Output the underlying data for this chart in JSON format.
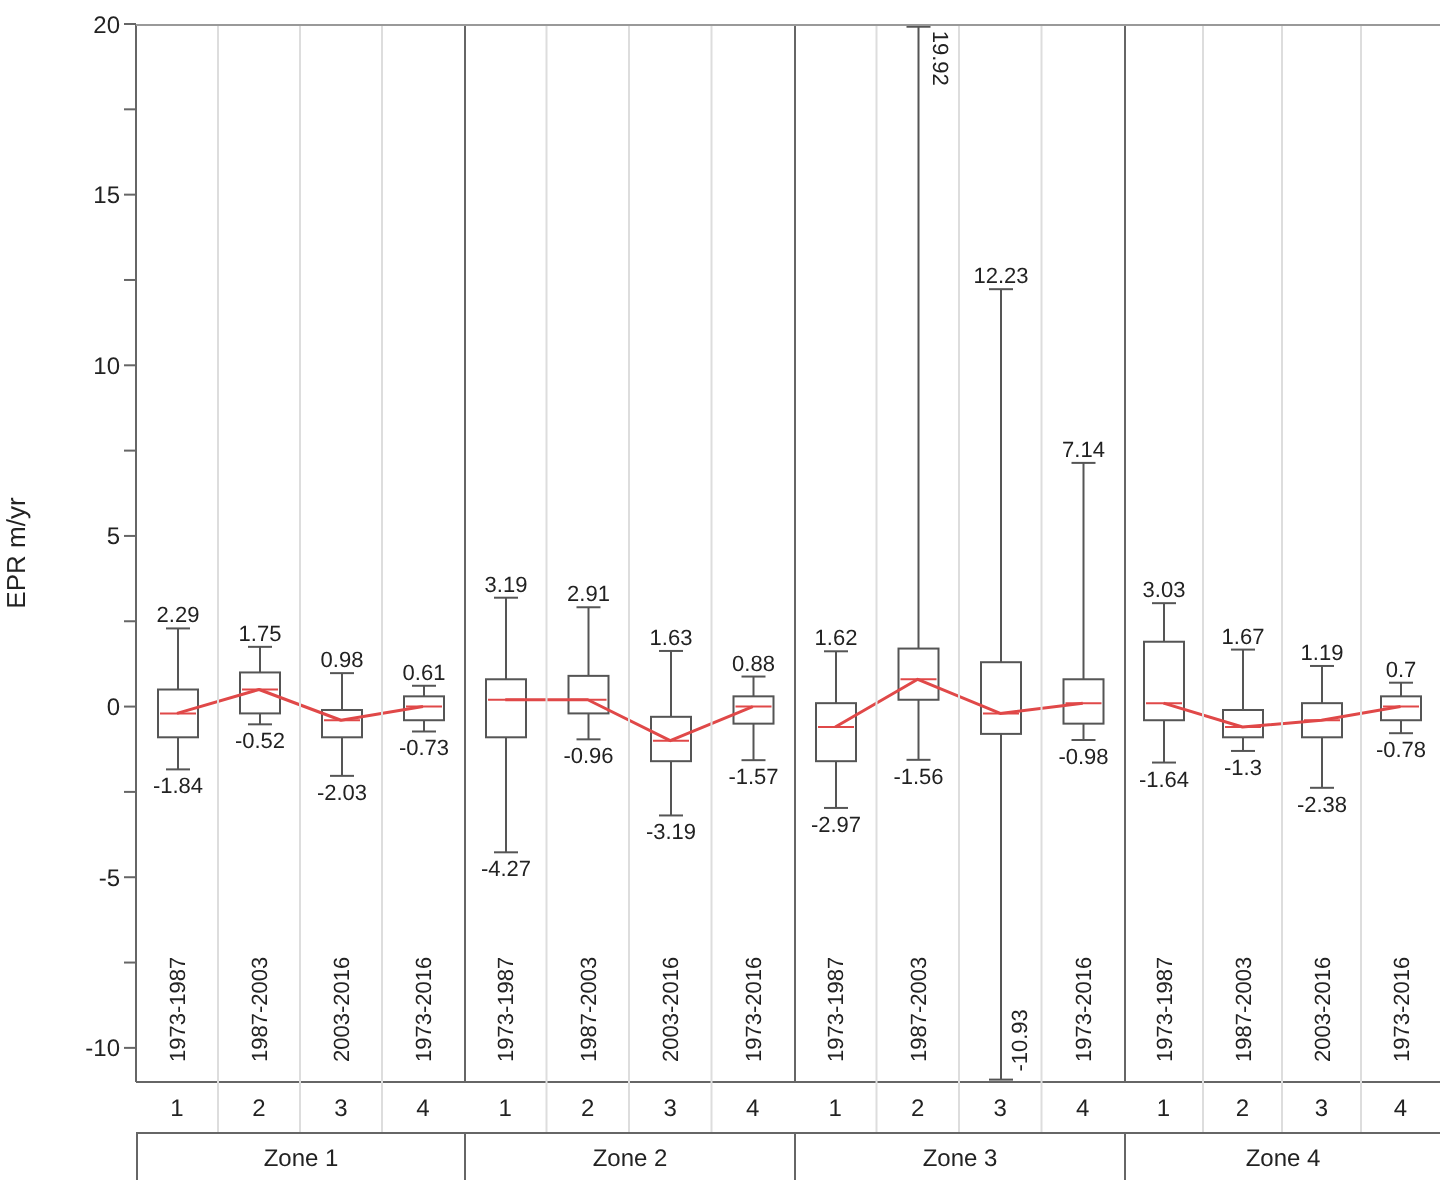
{
  "chart_data": [
    {
      "type": "box",
      "ylabel": "EPR m/yr",
      "xlabel": "Zone 1",
      "categories": [
        "1973-1987",
        "1987-2003",
        "2003-2016",
        "1973-2016"
      ],
      "color": "#555555",
      "ylim": [
        -11,
        20
      ],
      "yticks": [
        {
          "value": -10,
          "label": "-10"
        },
        {
          "value": -7.5,
          "label": null
        },
        {
          "value": -5,
          "label": "-5"
        },
        {
          "value": -2.5,
          "label": null
        },
        0,
        {
          "value": 2.5,
          "label": null
        },
        5,
        {
          "value": 7.5,
          "label": null
        },
        10,
        {
          "value": 12.5,
          "label": null
        },
        15,
        {
          "value": 17.5,
          "label": null
        },
        20
      ],
      "boxes": [
        {
          "low": -1.84,
          "q1": -0.9,
          "median": -0.2,
          "q3": 0.5,
          "high": 2.29
        },
        {
          "low": -0.52,
          "q1": -0.2,
          "median": 0.5,
          "q3": 1.0,
          "high": 1.75
        },
        {
          "low": -2.03,
          "q1": -0.9,
          "median": -0.4,
          "q3": -0.1,
          "high": 0.98
        },
        {
          "low": -0.73,
          "q1": -0.4,
          "median": 0.0,
          "q3": 0.3,
          "high": 0.61
        }
      ],
      "series": [
        {
          "type": "line",
          "color": "#e04848",
          "values": [
            -0.2,
            0.5,
            -0.4,
            0.0
          ]
        }
      ],
      "annotations": [
        "1",
        "2",
        "3",
        "4",
        {
          "text": "2.29",
          "x": "1973-1987",
          "y": 2.29
        },
        {
          "text": "-1.84",
          "x": "1973-1987",
          "y": -1.84
        },
        {
          "text": "1.75",
          "x": "1987-2003",
          "y": 1.75
        },
        {
          "text": "-0.52",
          "x": "1987-2003",
          "y": -0.52
        },
        {
          "text": "0.98",
          "x": "2003-2016",
          "y": 0.98
        },
        {
          "text": "-2.03",
          "x": "2003-2016",
          "y": -2.03
        },
        {
          "text": "0.61",
          "x": "1973-2016",
          "y": 0.61
        },
        {
          "text": "-0.73",
          "x": "1973-2016",
          "y": -0.73
        }
      ]
    },
    {
      "type": "box",
      "xlabel": "Zone 2",
      "categories": [
        "1973-1987",
        "1987-2003",
        "2003-2016",
        "1973-2016"
      ],
      "color": "#555555",
      "ylim": [
        -11,
        20
      ],
      "tick_labels": "x",
      "boxes": [
        {
          "low": -4.27,
          "q1": -0.9,
          "median": 0.2,
          "q3": 0.8,
          "high": 3.19
        },
        {
          "low": -0.96,
          "q1": -0.2,
          "median": 0.2,
          "q3": 0.9,
          "high": 2.91
        },
        {
          "low": -3.19,
          "q1": -1.6,
          "median": -1.0,
          "q3": -0.3,
          "high": 1.63
        },
        {
          "low": -1.57,
          "q1": -0.5,
          "median": 0.0,
          "q3": 0.3,
          "high": 0.88
        }
      ],
      "series": [
        {
          "type": "line",
          "color": "#e04848",
          "values": [
            0.2,
            0.2,
            -1.0,
            0.0
          ]
        }
      ],
      "annotations": [
        "1",
        "2",
        "3",
        "4",
        {
          "text": "3.19",
          "x": "1973-1987",
          "y": 3.19
        },
        {
          "text": "-4.27",
          "x": "1973-1987",
          "y": -4.27
        },
        {
          "text": "2.91",
          "x": "1987-2003",
          "y": 2.91
        },
        {
          "text": "-0.96",
          "x": "1987-2003",
          "y": -0.96
        },
        {
          "text": "1.63",
          "x": "2003-2016",
          "y": 1.63
        },
        {
          "text": "-3.19",
          "x": "2003-2016",
          "y": -3.19
        },
        {
          "text": "0.88",
          "x": "1973-2016",
          "y": 0.88
        },
        {
          "text": "-1.57",
          "x": "1973-2016",
          "y": -1.57
        }
      ]
    },
    {
      "type": "box",
      "xlabel": "Zone 3",
      "categories": [
        "1973-1987",
        "1987-2003",
        null,
        "1973-2016"
      ],
      "color": "#555555",
      "ylim": [
        -11,
        20
      ],
      "tick_labels": "x",
      "boxes": [
        {
          "low": -2.97,
          "q1": -1.6,
          "median": -0.6,
          "q3": 0.1,
          "high": 1.62
        },
        {
          "low": -1.56,
          "q1": 0.2,
          "median": 0.8,
          "q3": 1.7,
          "high": 19.92
        },
        {
          "low": -10.93,
          "q1": -0.8,
          "median": -0.2,
          "q3": 1.3,
          "high": 12.23
        },
        {
          "low": -0.98,
          "q1": -0.5,
          "median": 0.1,
          "q3": 0.8,
          "high": 7.14
        }
      ],
      "series": [
        {
          "type": "line",
          "color": "#e04848",
          "values": [
            -0.6,
            0.8,
            -0.2,
            0.1
          ]
        }
      ],
      "annotations": [
        "1",
        "2",
        "3",
        "4",
        {
          "text": "1.62",
          "x": "1973-1987",
          "y": 1.62
        },
        {
          "text": "-2.97",
          "x": "1973-1987",
          "y": -2.97
        },
        {
          "text": "19.92",
          "x": "1987-2003",
          "y": 19.92
        },
        {
          "text": "-1.56",
          "x": "1987-2003",
          "y": -1.56
        },
        {
          "text": "12.23",
          "y": 12.23
        },
        {
          "text": "-10.93",
          "y": -10.93
        },
        {
          "text": "7.14",
          "x": "1973-2016",
          "y": 7.14
        },
        {
          "text": "-0.98",
          "x": "1973-2016",
          "y": -0.98
        }
      ]
    },
    {
      "type": "box",
      "xlabel": "Zone 4",
      "categories": [
        "1973-1987",
        "1987-2003",
        "2003-2016",
        "1973-2016"
      ],
      "color": "#555555",
      "ylim": [
        -11,
        20
      ],
      "tick_labels": "x",
      "boxes": [
        {
          "low": -1.64,
          "q1": -0.4,
          "median": 0.1,
          "q3": 1.9,
          "high": 3.03
        },
        {
          "low": -1.3,
          "q1": -0.9,
          "median": -0.6,
          "q3": -0.1,
          "high": 1.67
        },
        {
          "low": -2.38,
          "q1": -0.9,
          "median": -0.4,
          "q3": 0.1,
          "high": 1.19
        },
        {
          "low": -0.78,
          "q1": -0.4,
          "median": 0.0,
          "q3": 0.3,
          "high": 0.7
        }
      ],
      "series": [
        {
          "type": "line",
          "color": "#e04848",
          "values": [
            0.1,
            -0.6,
            -0.4,
            0.0
          ]
        }
      ],
      "annotations": [
        "1",
        "2",
        "3",
        "4",
        {
          "text": "3.03",
          "x": "1973-1987",
          "y": 3.03
        },
        {
          "text": "-1.64",
          "x": "1973-1987",
          "y": -1.64
        },
        {
          "text": "1.67",
          "x": "1987-2003",
          "y": 1.67
        },
        {
          "text": "-1.3",
          "x": "1987-2003",
          "y": -1.3
        },
        {
          "text": "1.19",
          "x": "2003-2016",
          "y": 1.19
        },
        {
          "text": "-2.38",
          "x": "2003-2016",
          "y": -2.38
        },
        {
          "text": "0.7",
          "x": "1973-2016",
          "y": 0.7
        },
        {
          "text": "-0.78",
          "x": "1973-2016",
          "y": -0.78
        }
      ]
    }
  ]
}
